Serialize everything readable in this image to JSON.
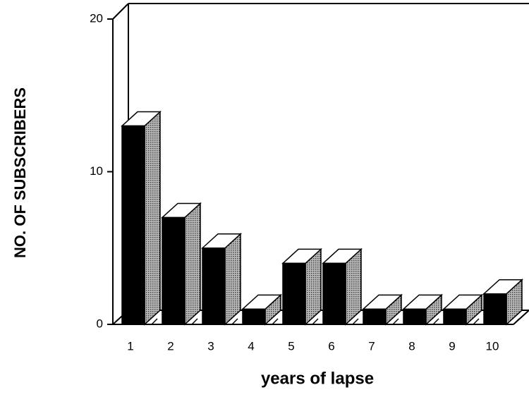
{
  "chart_data": {
    "type": "bar3d",
    "x_label": "years of lapse",
    "y_label": "NO. OF SUBSCRIBERS",
    "categories": [
      "1",
      "2",
      "3",
      "4",
      "5",
      "6",
      "7",
      "8",
      "9",
      "10"
    ],
    "values": [
      13,
      7,
      5,
      1,
      4,
      4,
      1,
      1,
      1,
      2
    ],
    "ylim": [
      0,
      20
    ],
    "yticks": [
      0,
      10,
      20
    ],
    "color": "#000000"
  }
}
